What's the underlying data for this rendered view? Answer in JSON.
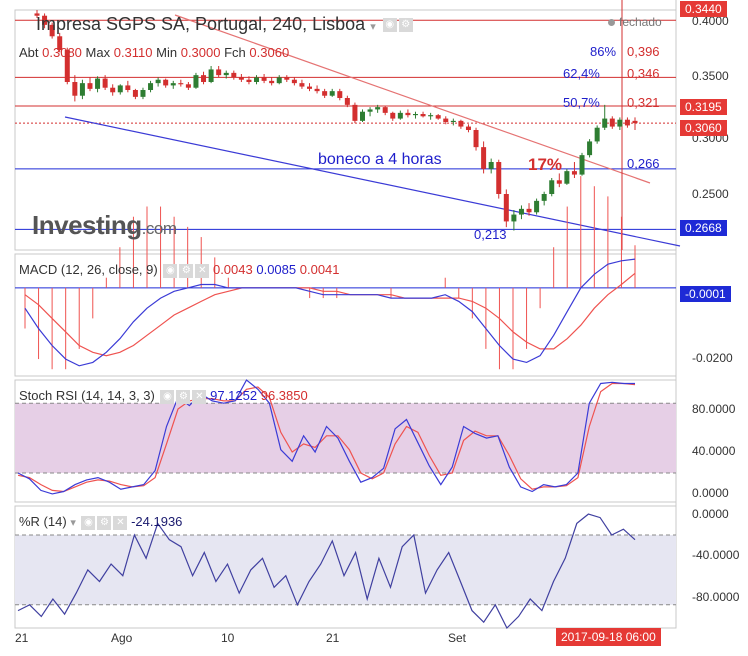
{
  "window": {
    "title": "Impresa SGPS SA, Portugal, 240, Lisboa",
    "status": "fechado",
    "logo_text": "Investing",
    "logo_suffix": ".com"
  },
  "ohlc": {
    "open_label": "Abt",
    "open": "0.3080",
    "high_label": "Max",
    "high": "0.3110",
    "low_label": "Min",
    "low": "0.3000",
    "close_label": "Fch",
    "close": "0.3060"
  },
  "indicators": {
    "macd": {
      "label": "MACD (12, 26, close, 9)",
      "v1": "0.0043",
      "v2": "0.0085",
      "v3": "0.0041"
    },
    "stoch": {
      "label": "Stoch RSI (14, 14, 3, 3)",
      "v1": "97.1252",
      "v2": "96.3850"
    },
    "wr": {
      "label": "%R (14)",
      "v1": "-24.1936"
    }
  },
  "annotations": {
    "fib86_pct": "86%",
    "fib86_val": "0,396",
    "fib624_pct": "62,4%",
    "fib624_val": "0,346",
    "fib507_pct": "50,7%",
    "fib507_val": "0,321",
    "support_val": "0,266",
    "low_val": "0,213",
    "pattern_label": "boneco a 4 horas",
    "gain_label": "17%"
  },
  "price_axis": {
    "ticks": [
      "0.4000",
      "0.3500",
      "0.3000",
      "0.2500"
    ],
    "box_top": "0.3440",
    "box_3195": "0.3195",
    "box_last": "0.3060",
    "box_support": "0.2668"
  },
  "macd_axis": {
    "ticks": [
      "-0.0200"
    ],
    "box": "-0.0001"
  },
  "stoch_axis": {
    "ticks": [
      "80.0000",
      "40.0000",
      "0.0000"
    ]
  },
  "wr_axis": {
    "ticks": [
      "0.0000",
      "-40.0000",
      "-80.0000"
    ]
  },
  "time_axis": {
    "ticks": [
      "21",
      "Ago",
      "10",
      "21",
      "Set"
    ],
    "cursor_date": "2017-09-18 06:00"
  },
  "colors": {
    "up": "#2e7d32",
    "down": "#d32f2f",
    "macd": "#3b3bd6",
    "signal": "#ef5350",
    "stoch_band": "#e6cfe6",
    "wr_band": "#e6e6f2",
    "fib": "#d32f2f",
    "support": "#1e2ad6",
    "trend_down": "#e57373",
    "trend_low": "#3b3bd6"
  },
  "chart_data": {
    "type": "candlestick",
    "title": "Impresa SGPS SA, Portugal, 240, Lisboa",
    "ylim": [
      0.195,
      0.405
    ],
    "bars": [
      {
        "o": 0.402,
        "h": 0.405,
        "l": 0.398,
        "c": 0.4
      },
      {
        "o": 0.4,
        "h": 0.402,
        "l": 0.389,
        "c": 0.392
      },
      {
        "o": 0.392,
        "h": 0.394,
        "l": 0.38,
        "c": 0.382
      },
      {
        "o": 0.382,
        "h": 0.385,
        "l": 0.368,
        "c": 0.37
      },
      {
        "o": 0.37,
        "h": 0.372,
        "l": 0.34,
        "c": 0.342
      },
      {
        "o": 0.342,
        "h": 0.348,
        "l": 0.325,
        "c": 0.33
      },
      {
        "o": 0.33,
        "h": 0.344,
        "l": 0.327,
        "c": 0.341
      },
      {
        "o": 0.341,
        "h": 0.346,
        "l": 0.334,
        "c": 0.336
      },
      {
        "o": 0.336,
        "h": 0.347,
        "l": 0.333,
        "c": 0.345
      },
      {
        "o": 0.345,
        "h": 0.348,
        "l": 0.335,
        "c": 0.337
      },
      {
        "o": 0.337,
        "h": 0.34,
        "l": 0.33,
        "c": 0.333
      },
      {
        "o": 0.333,
        "h": 0.34,
        "l": 0.331,
        "c": 0.339
      },
      {
        "o": 0.339,
        "h": 0.343,
        "l": 0.333,
        "c": 0.335
      },
      {
        "o": 0.335,
        "h": 0.336,
        "l": 0.327,
        "c": 0.329
      },
      {
        "o": 0.329,
        "h": 0.337,
        "l": 0.327,
        "c": 0.335
      },
      {
        "o": 0.335,
        "h": 0.343,
        "l": 0.333,
        "c": 0.341
      },
      {
        "o": 0.341,
        "h": 0.346,
        "l": 0.338,
        "c": 0.344
      },
      {
        "o": 0.344,
        "h": 0.345,
        "l": 0.337,
        "c": 0.339
      },
      {
        "o": 0.339,
        "h": 0.343,
        "l": 0.336,
        "c": 0.341
      },
      {
        "o": 0.341,
        "h": 0.344,
        "l": 0.338,
        "c": 0.34
      },
      {
        "o": 0.34,
        "h": 0.342,
        "l": 0.335,
        "c": 0.337
      },
      {
        "o": 0.337,
        "h": 0.35,
        "l": 0.336,
        "c": 0.348
      },
      {
        "o": 0.348,
        "h": 0.351,
        "l": 0.34,
        "c": 0.342
      },
      {
        "o": 0.342,
        "h": 0.356,
        "l": 0.341,
        "c": 0.353
      },
      {
        "o": 0.353,
        "h": 0.356,
        "l": 0.346,
        "c": 0.348
      },
      {
        "o": 0.348,
        "h": 0.352,
        "l": 0.345,
        "c": 0.35
      },
      {
        "o": 0.35,
        "h": 0.352,
        "l": 0.344,
        "c": 0.346
      },
      {
        "o": 0.346,
        "h": 0.349,
        "l": 0.342,
        "c": 0.344
      },
      {
        "o": 0.344,
        "h": 0.347,
        "l": 0.34,
        "c": 0.342
      },
      {
        "o": 0.342,
        "h": 0.348,
        "l": 0.34,
        "c": 0.346
      },
      {
        "o": 0.346,
        "h": 0.349,
        "l": 0.341,
        "c": 0.343
      },
      {
        "o": 0.343,
        "h": 0.346,
        "l": 0.339,
        "c": 0.341
      },
      {
        "o": 0.341,
        "h": 0.348,
        "l": 0.34,
        "c": 0.346
      },
      {
        "o": 0.346,
        "h": 0.348,
        "l": 0.342,
        "c": 0.344
      },
      {
        "o": 0.344,
        "h": 0.346,
        "l": 0.339,
        "c": 0.341
      },
      {
        "o": 0.341,
        "h": 0.344,
        "l": 0.336,
        "c": 0.338
      },
      {
        "o": 0.338,
        "h": 0.341,
        "l": 0.334,
        "c": 0.336
      },
      {
        "o": 0.336,
        "h": 0.339,
        "l": 0.332,
        "c": 0.334
      },
      {
        "o": 0.334,
        "h": 0.336,
        "l": 0.328,
        "c": 0.33
      },
      {
        "o": 0.33,
        "h": 0.336,
        "l": 0.329,
        "c": 0.334
      },
      {
        "o": 0.334,
        "h": 0.336,
        "l": 0.326,
        "c": 0.328
      },
      {
        "o": 0.328,
        "h": 0.33,
        "l": 0.32,
        "c": 0.322
      },
      {
        "o": 0.322,
        "h": 0.324,
        "l": 0.306,
        "c": 0.308
      },
      {
        "o": 0.308,
        "h": 0.318,
        "l": 0.307,
        "c": 0.316
      },
      {
        "o": 0.316,
        "h": 0.32,
        "l": 0.312,
        "c": 0.318
      },
      {
        "o": 0.318,
        "h": 0.322,
        "l": 0.315,
        "c": 0.32
      },
      {
        "o": 0.32,
        "h": 0.321,
        "l": 0.313,
        "c": 0.315
      },
      {
        "o": 0.315,
        "h": 0.316,
        "l": 0.308,
        "c": 0.31
      },
      {
        "o": 0.31,
        "h": 0.317,
        "l": 0.309,
        "c": 0.315
      },
      {
        "o": 0.315,
        "h": 0.318,
        "l": 0.311,
        "c": 0.313
      },
      {
        "o": 0.313,
        "h": 0.316,
        "l": 0.31,
        "c": 0.314
      },
      {
        "o": 0.314,
        "h": 0.316,
        "l": 0.311,
        "c": 0.312
      },
      {
        "o": 0.312,
        "h": 0.315,
        "l": 0.309,
        "c": 0.313
      },
      {
        "o": 0.313,
        "h": 0.314,
        "l": 0.309,
        "c": 0.31
      },
      {
        "o": 0.31,
        "h": 0.312,
        "l": 0.305,
        "c": 0.307
      },
      {
        "o": 0.307,
        "h": 0.31,
        "l": 0.304,
        "c": 0.308
      },
      {
        "o": 0.308,
        "h": 0.309,
        "l": 0.301,
        "c": 0.303
      },
      {
        "o": 0.303,
        "h": 0.305,
        "l": 0.298,
        "c": 0.3
      },
      {
        "o": 0.3,
        "h": 0.302,
        "l": 0.282,
        "c": 0.285
      },
      {
        "o": 0.285,
        "h": 0.29,
        "l": 0.262,
        "c": 0.266
      },
      {
        "o": 0.266,
        "h": 0.275,
        "l": 0.262,
        "c": 0.272
      },
      {
        "o": 0.272,
        "h": 0.274,
        "l": 0.24,
        "c": 0.244
      },
      {
        "o": 0.244,
        "h": 0.248,
        "l": 0.215,
        "c": 0.22
      },
      {
        "o": 0.22,
        "h": 0.23,
        "l": 0.212,
        "c": 0.226
      },
      {
        "o": 0.226,
        "h": 0.234,
        "l": 0.222,
        "c": 0.231
      },
      {
        "o": 0.231,
        "h": 0.236,
        "l": 0.225,
        "c": 0.228
      },
      {
        "o": 0.228,
        "h": 0.24,
        "l": 0.226,
        "c": 0.238
      },
      {
        "o": 0.238,
        "h": 0.246,
        "l": 0.234,
        "c": 0.244
      },
      {
        "o": 0.244,
        "h": 0.258,
        "l": 0.242,
        "c": 0.256
      },
      {
        "o": 0.256,
        "h": 0.262,
        "l": 0.25,
        "c": 0.253
      },
      {
        "o": 0.253,
        "h": 0.266,
        "l": 0.252,
        "c": 0.264
      },
      {
        "o": 0.264,
        "h": 0.272,
        "l": 0.258,
        "c": 0.261
      },
      {
        "o": 0.261,
        "h": 0.28,
        "l": 0.26,
        "c": 0.278
      },
      {
        "o": 0.278,
        "h": 0.292,
        "l": 0.276,
        "c": 0.29
      },
      {
        "o": 0.29,
        "h": 0.304,
        "l": 0.288,
        "c": 0.302
      },
      {
        "o": 0.302,
        "h": 0.322,
        "l": 0.3,
        "c": 0.31
      },
      {
        "o": 0.31,
        "h": 0.312,
        "l": 0.301,
        "c": 0.303
      },
      {
        "o": 0.303,
        "h": 0.311,
        "l": 0.3,
        "c": 0.309
      },
      {
        "o": 0.309,
        "h": 0.311,
        "l": 0.302,
        "c": 0.304
      },
      {
        "o": 0.308,
        "h": 0.311,
        "l": 0.3,
        "c": 0.306
      }
    ],
    "hlines": [
      0.396,
      0.346,
      0.321,
      0.306,
      0.266,
      0.213
    ],
    "macd": {
      "ylim": [
        -0.026,
        0.01
      ],
      "macd_line": [
        -0.006,
        -0.012,
        -0.017,
        -0.021,
        -0.023,
        -0.022,
        -0.019,
        -0.015,
        -0.01,
        -0.006,
        -0.003,
        -0.001,
        0.0,
        0.001,
        0.001,
        0.0,
        0.0,
        0.0,
        0.0,
        0.0,
        0.0,
        -0.001,
        -0.002,
        -0.002,
        -0.002,
        -0.002,
        -0.002,
        -0.003,
        -0.003,
        -0.003,
        -0.003,
        -0.002,
        -0.004,
        -0.007,
        -0.012,
        -0.017,
        -0.021,
        -0.022,
        -0.02,
        -0.014,
        -0.007,
        0.0,
        0.004,
        0.007,
        0.008,
        0.0085
      ],
      "signal_line": [
        -0.002,
        -0.005,
        -0.009,
        -0.013,
        -0.017,
        -0.019,
        -0.02,
        -0.019,
        -0.017,
        -0.014,
        -0.011,
        -0.008,
        -0.006,
        -0.004,
        -0.002,
        -0.001,
        0.0,
        0.0,
        0.0,
        0.0,
        0.0,
        0.0,
        -0.001,
        -0.001,
        -0.002,
        -0.002,
        -0.002,
        -0.002,
        -0.003,
        -0.003,
        -0.003,
        -0.003,
        -0.003,
        -0.004,
        -0.006,
        -0.009,
        -0.013,
        -0.016,
        -0.018,
        -0.018,
        -0.015,
        -0.011,
        -0.006,
        -0.002,
        0.001,
        0.0043
      ]
    },
    "stoch_rsi": {
      "ylim": [
        -5,
        100
      ],
      "k": [
        20,
        15,
        5,
        2,
        4,
        10,
        14,
        16,
        12,
        6,
        8,
        10,
        22,
        60,
        85,
        78,
        88,
        82,
        80,
        82,
        100,
        92,
        80,
        40,
        30,
        52,
        38,
        60,
        50,
        30,
        12,
        16,
        24,
        58,
        66,
        46,
        26,
        10,
        25,
        60,
        54,
        50,
        52,
        25,
        8,
        4,
        10,
        8,
        10,
        20,
        80,
        97,
        98,
        97,
        97
      ],
      "d": [
        18,
        16,
        10,
        5,
        4,
        8,
        12,
        14,
        13,
        10,
        8,
        9,
        16,
        45,
        75,
        82,
        84,
        84,
        82,
        82,
        92,
        94,
        85,
        55,
        38,
        45,
        42,
        52,
        52,
        40,
        20,
        15,
        20,
        45,
        60,
        55,
        35,
        18,
        20,
        48,
        56,
        52,
        52,
        35,
        15,
        6,
        8,
        8,
        9,
        16,
        60,
        90,
        97,
        97,
        96
      ]
    },
    "williams_r": {
      "ylim": [
        -100,
        5
      ],
      "values": [
        -85,
        -80,
        -90,
        -75,
        -88,
        -70,
        -50,
        -60,
        -45,
        -55,
        -20,
        -40,
        -10,
        -24,
        -30,
        -55,
        -35,
        -60,
        -45,
        -70,
        -50,
        -40,
        -65,
        -55,
        -80,
        -60,
        -45,
        -25,
        -55,
        -35,
        -75,
        -40,
        -65,
        -30,
        -20,
        -70,
        -50,
        -35,
        -60,
        -85,
        -95,
        -80,
        -100,
        -90,
        -75,
        -85,
        -60,
        -40,
        -10,
        -2,
        -5,
        -20,
        -15,
        -24
      ]
    }
  }
}
